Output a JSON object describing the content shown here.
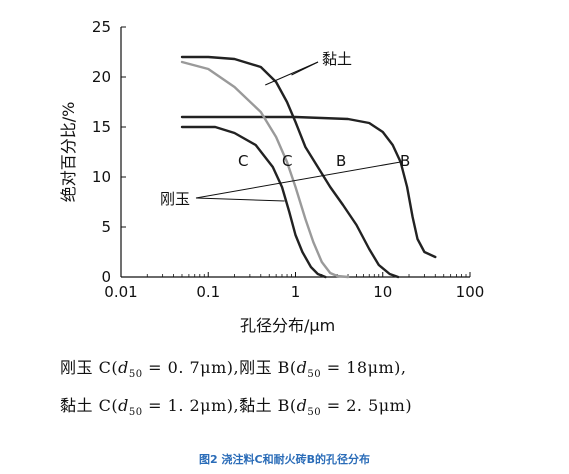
{
  "chart_data": {
    "type": "line",
    "title": "",
    "xlabel": "孔径分布/μm",
    "ylabel": "绝对百分比/%",
    "x_scale": "log",
    "xlim": [
      0.01,
      100
    ],
    "ylim": [
      0,
      25
    ],
    "x_ticks": [
      0.01,
      0.1,
      1,
      10,
      100
    ],
    "x_tick_labels": [
      "0.01",
      "0.1",
      "1",
      "10",
      "100"
    ],
    "y_ticks": [
      0,
      5,
      10,
      15,
      20,
      25
    ],
    "y_tick_labels": [
      "0",
      "5",
      "10",
      "15",
      "20",
      "25"
    ],
    "grid": false,
    "series": [
      {
        "color": "#222222",
        "x": [
          0.05,
          0.12,
          0.2,
          0.35,
          0.55,
          0.7,
          0.85,
          1.0,
          1.2,
          1.5,
          1.8,
          2.2
        ],
        "y": [
          15,
          15,
          14.4,
          13.2,
          11.0,
          9.0,
          6.5,
          4.2,
          2.5,
          1.0,
          0.3,
          0.0
        ]
      },
      {
        "color": "#222222",
        "x": [
          0.05,
          0.2,
          0.5,
          1,
          2,
          4,
          7,
          10,
          13,
          16,
          19,
          22,
          25,
          30,
          40
        ],
        "y": [
          16,
          16,
          16,
          16,
          15.9,
          15.8,
          15.4,
          14.5,
          13.2,
          11.5,
          9.0,
          6.0,
          3.8,
          2.5,
          2.0
        ]
      },
      {
        "color": "#9a9a9a",
        "x": [
          0.05,
          0.1,
          0.2,
          0.4,
          0.6,
          0.8,
          1.0,
          1.3,
          1.6,
          2.0,
          2.5,
          3.0,
          4.0
        ],
        "y": [
          21.5,
          20.8,
          19.0,
          16.5,
          14.0,
          11.5,
          9.0,
          5.8,
          3.5,
          1.5,
          0.4,
          0.1,
          0.0
        ]
      },
      {
        "color": "#222222",
        "x": [
          0.05,
          0.1,
          0.2,
          0.4,
          0.6,
          0.8,
          1.0,
          1.3,
          1.8,
          2.5,
          3.5,
          5.0,
          7.0,
          9.0,
          12.0,
          15.0
        ],
        "y": [
          22,
          22,
          21.8,
          21.0,
          19.5,
          17.5,
          15.5,
          13.0,
          11.0,
          9.0,
          7.2,
          5.2,
          2.8,
          1.2,
          0.3,
          0.0
        ]
      }
    ],
    "annotations": {
      "clay": "黏土",
      "corundum": "刚玉",
      "c_corundum": "C",
      "c_clay": "C",
      "b_clay": "B",
      "b_corundum": "B"
    }
  },
  "formulas": {
    "line1": {
      "a_name": "刚玉 C(",
      "a_d": "d",
      "a_sub": "50",
      "a_val": " = 0. 7μm),",
      "b_name": "刚玉 B(",
      "b_d": "d",
      "b_sub": "50",
      "b_val": " = 18μm),"
    },
    "line2": {
      "a_name": "黏土 C(",
      "a_d": "d",
      "a_sub": "50",
      "a_val": " = 1. 2μm),",
      "b_name": "黏土 B(",
      "b_d": "d",
      "b_sub": "50",
      "b_val": " = 2. 5μm)"
    }
  },
  "caption": "图2    浇注料C和耐火砖B的孔径分布"
}
